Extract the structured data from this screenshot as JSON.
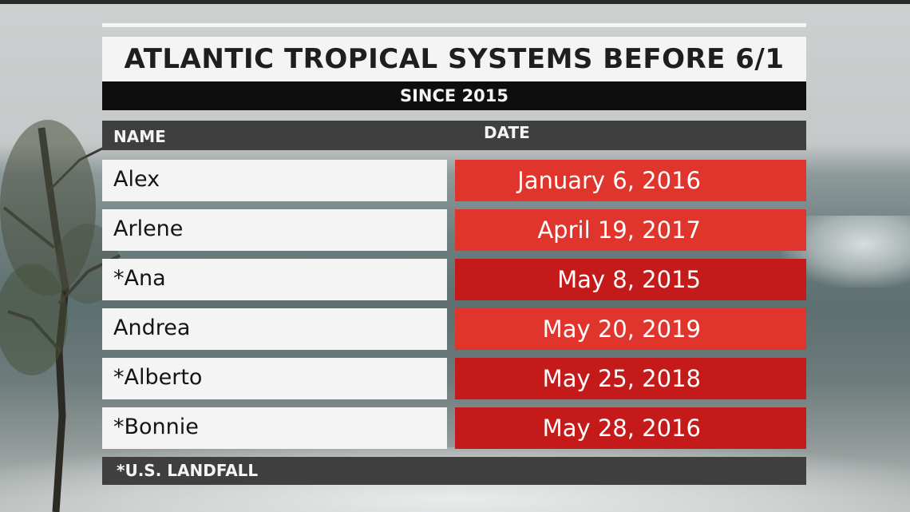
{
  "graphic": {
    "title": "ATLANTIC TROPICAL SYSTEMS BEFORE 6/1",
    "subtitle": "SINCE 2015"
  },
  "table": {
    "headers": {
      "name": "NAME",
      "date": "DATE"
    },
    "rows": [
      {
        "name": "Alex",
        "date": "January 6, 2016",
        "landfall": false,
        "date_color": "#e0352d"
      },
      {
        "name": "Arlene",
        "date": "April 19, 2017",
        "landfall": false,
        "date_color": "#e0352d"
      },
      {
        "name": "*Ana",
        "date": "May 8, 2015",
        "landfall": true,
        "date_color": "#c51a1a"
      },
      {
        "name": "Andrea",
        "date": "May 20, 2019",
        "landfall": false,
        "date_color": "#e0352d"
      },
      {
        "name": "*Alberto",
        "date": "May 25, 2018",
        "landfall": true,
        "date_color": "#c51a1a"
      },
      {
        "name": "*Bonnie",
        "date": "May 28, 2016",
        "landfall": true,
        "date_color": "#c51a1a"
      }
    ]
  },
  "footnote": "*U.S. LANDFALL",
  "colors": {
    "panel_white": "#f4f4f4",
    "subtitle_black": "#0e0e0e",
    "header_gray": "#3f3f3f",
    "date_red_light": "#e0352d",
    "date_red_dark": "#c51a1a"
  },
  "background": {
    "description_icon": "stormy-ocean-background"
  }
}
